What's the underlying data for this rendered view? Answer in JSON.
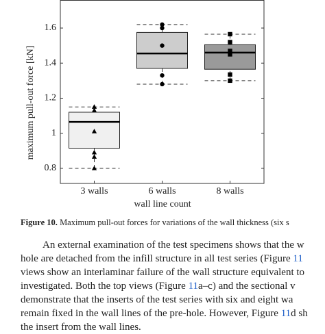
{
  "chart_data": {
    "type": "box",
    "ylabel": "maximum pull-out force [kN]",
    "xlabel": "wall line count",
    "categories": [
      "3 walls",
      "6 walls",
      "8 walls"
    ],
    "ylim": [
      0.714,
      1.76
    ],
    "yticks": [
      0.8,
      1,
      1.2,
      1.4,
      1.6
    ],
    "series": [
      {
        "color": "#f0f0f0",
        "marker": "triangle",
        "whisker_low": 0.8,
        "q1": 0.915,
        "median": 1.065,
        "q3": 1.12,
        "whisker_high": 1.15,
        "points": [
          1.15,
          1.13,
          1.01,
          0.89,
          0.865,
          0.8
        ]
      },
      {
        "color": "#cdcdcd",
        "marker": "circle",
        "whisker_low": 1.28,
        "q1": 1.37,
        "median": 1.455,
        "q3": 1.575,
        "whisker_high": 1.62,
        "points": [
          1.62,
          1.6,
          1.5,
          1.33,
          1.28
        ]
      },
      {
        "color": "#9a9a9a",
        "marker": "square",
        "whisker_low": 1.3,
        "q1": 1.365,
        "median": 1.46,
        "q3": 1.505,
        "whisker_high": 1.565,
        "points": [
          1.565,
          1.52,
          1.47,
          1.45,
          1.335,
          1.3
        ]
      }
    ]
  },
  "caption": {
    "label": "Figure 10.",
    "text": " Maximum pull-out forces for variations of the wall thickness (six s"
  },
  "paragraph": [
    [
      {
        "text": "An external examination of the test specimens shows that the w"
      }
    ],
    [
      {
        "text": "hole are detached from the infill structure in all test series (Figure "
      },
      {
        "text": "11",
        "link": true
      }
    ],
    [
      {
        "text": "views show an interlaminar failure of the wall structure equivalent to"
      }
    ],
    [
      {
        "text": "investigated.  Both the top views (Figure "
      },
      {
        "text": "11",
        "link": true
      },
      {
        "text": "a–c) and the sectional v"
      }
    ],
    [
      {
        "text": "demonstrate that the inserts of the test series with six and eight wa"
      }
    ],
    [
      {
        "text": "remain fixed in the wall lines of the pre-hole. However, Figure "
      },
      {
        "text": "11",
        "link": true
      },
      {
        "text": "d sh"
      }
    ],
    [
      {
        "text": "the insert from the wall lines."
      }
    ]
  ]
}
